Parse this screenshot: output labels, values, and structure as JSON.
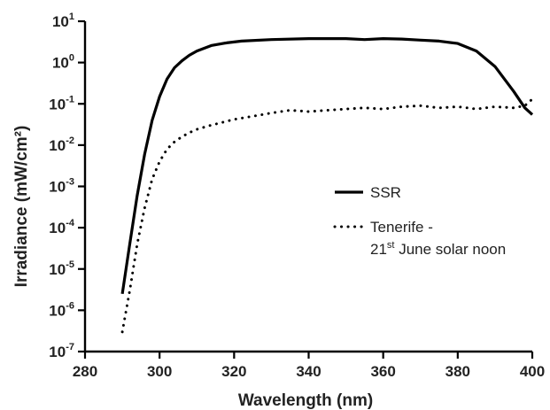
{
  "chart_data": {
    "type": "line",
    "title": "",
    "xlabel": "Wavelength (nm)",
    "ylabel": "Irradiance (mW/cm²)",
    "xlim": [
      280,
      400
    ],
    "ylim": [
      1e-07,
      10
    ],
    "yscale": "log",
    "xticks": [
      280,
      300,
      320,
      340,
      360,
      380,
      400
    ],
    "xtick_labels": [
      "280",
      "300",
      "320",
      "340",
      "360",
      "380",
      "400"
    ],
    "yticks": [
      {
        "base": "10",
        "exp": "1"
      },
      {
        "base": "10",
        "exp": "0"
      },
      {
        "base": "10",
        "exp": "-1"
      },
      {
        "base": "10",
        "exp": "-2"
      },
      {
        "base": "10",
        "exp": "-3"
      },
      {
        "base": "10",
        "exp": "-4"
      },
      {
        "base": "10",
        "exp": "-5"
      },
      {
        "base": "10",
        "exp": "-6"
      },
      {
        "base": "10",
        "exp": "-7"
      }
    ],
    "legend_placement": "right-middle",
    "series": [
      {
        "name": "SSR",
        "style": "solid",
        "color": "#000000",
        "x": [
          290,
          292,
          294,
          296,
          298,
          300,
          302,
          304,
          306,
          308,
          310,
          314,
          318,
          322,
          330,
          340,
          350,
          355,
          360,
          365,
          370,
          375,
          380,
          385,
          390,
          395,
          398,
          400
        ],
        "y": [
          2.5e-06,
          4e-05,
          0.0006,
          0.006,
          0.04,
          0.15,
          0.4,
          0.75,
          1.1,
          1.5,
          1.9,
          2.6,
          3.0,
          3.3,
          3.6,
          3.8,
          3.8,
          3.6,
          3.8,
          3.7,
          3.5,
          3.3,
          2.9,
          1.9,
          0.8,
          0.2,
          0.08,
          0.055
        ]
      },
      {
        "name": "Tenerife - 21st June solar noon",
        "legend_line1": "Tenerife -",
        "legend_line2_prefix": "21",
        "legend_line2_sup": "st",
        "legend_line2_suffix": " June solar noon",
        "style": "dotted",
        "color": "#000000",
        "x": [
          290,
          292,
          294,
          296,
          298,
          300,
          302,
          304,
          306,
          308,
          310,
          313,
          316,
          320,
          325,
          330,
          335,
          340,
          345,
          350,
          355,
          360,
          365,
          370,
          375,
          380,
          385,
          390,
          395,
          398,
          400
        ],
        "y": [
          3e-07,
          3e-06,
          4e-05,
          0.0003,
          0.0015,
          0.004,
          0.008,
          0.012,
          0.016,
          0.02,
          0.024,
          0.029,
          0.034,
          0.042,
          0.05,
          0.06,
          0.07,
          0.065,
          0.07,
          0.075,
          0.08,
          0.075,
          0.085,
          0.09,
          0.08,
          0.085,
          0.075,
          0.085,
          0.08,
          0.09,
          0.13
        ]
      }
    ]
  }
}
